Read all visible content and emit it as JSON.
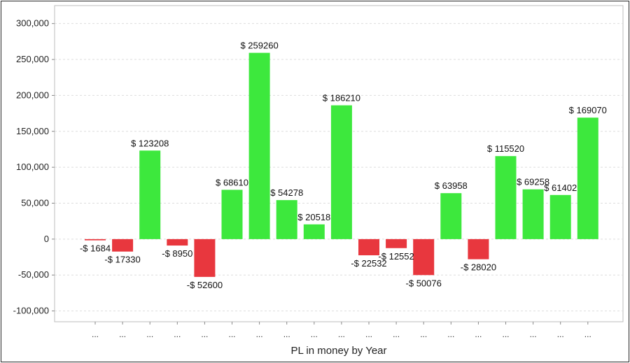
{
  "chart_data": {
    "type": "bar",
    "xlabel": "PL in money by Year",
    "ylabel": "",
    "ylim": [
      -115000,
      325000
    ],
    "yticks": [
      -100000,
      -50000,
      0,
      50000,
      100000,
      150000,
      200000,
      250000,
      300000
    ],
    "ytick_labels": [
      "-100,000",
      "-50,000",
      "0",
      "50,000",
      "100,000",
      "150,000",
      "200,000",
      "250,000",
      "300,000"
    ],
    "grid": true,
    "categories": [
      "...",
      "...",
      "...",
      "...",
      "...",
      "...",
      "...",
      "...",
      "...",
      "...",
      "...",
      "...",
      "...",
      "...",
      "...",
      "...",
      "...",
      "...",
      "..."
    ],
    "values": [
      -1684,
      -17330,
      123208,
      -8950,
      -52600,
      68610,
      259260,
      54278,
      20518,
      186210,
      -22532,
      -12552,
      -50076,
      63958,
      -28020,
      115520,
      69258,
      61402,
      169070
    ],
    "data_labels": [
      "-$ 1684",
      "-$ 17330",
      "$ 123208",
      "-$ 8950",
      "-$ 52600",
      "$ 68610",
      "$ 259260",
      "$ 54278",
      "$ 20518",
      "$ 186210",
      "-$ 22532",
      "-$ 12552",
      "-$ 50076",
      "$ 63958",
      "-$ 28020",
      "$ 115520",
      "$ 69258",
      "$ 61402",
      "$ 169070"
    ],
    "colors": {
      "positive": "#3de83d",
      "negative": "#e8373e"
    }
  }
}
